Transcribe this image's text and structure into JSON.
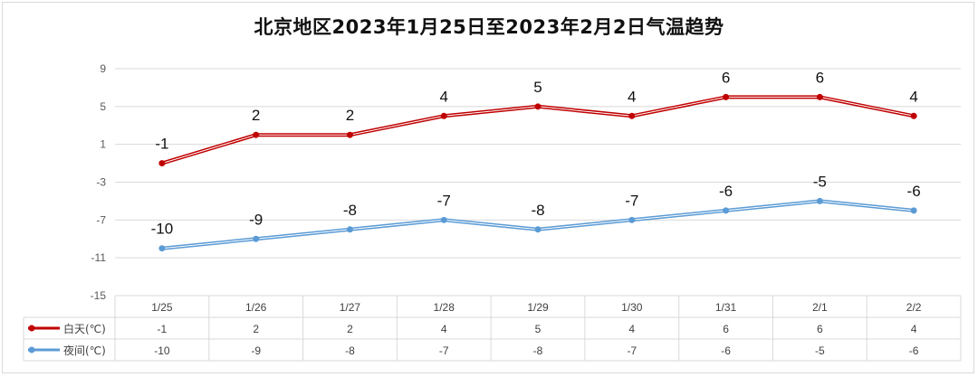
{
  "chart_data": {
    "type": "line",
    "title": "北京地区2023年1月25日至2023年2月2日气温趋势",
    "categories": [
      "1/25",
      "1/26",
      "1/27",
      "1/28",
      "1/29",
      "1/30",
      "1/31",
      "2/1",
      "2/2"
    ],
    "yticks": [
      9,
      5,
      1,
      -3,
      -7,
      -11,
      -15
    ],
    "ylim": [
      -15,
      9
    ],
    "grid": true,
    "legend": "data-table-left",
    "series": [
      {
        "name": "白天(℃)",
        "color": "#c00000",
        "values": [
          -1,
          2,
          2,
          4,
          5,
          4,
          6,
          6,
          4
        ]
      },
      {
        "name": "夜间(℃)",
        "color": "#5b9bd5",
        "values": [
          -10,
          -9,
          -8,
          -7,
          -8,
          -7,
          -6,
          -5,
          -6
        ]
      }
    ]
  }
}
